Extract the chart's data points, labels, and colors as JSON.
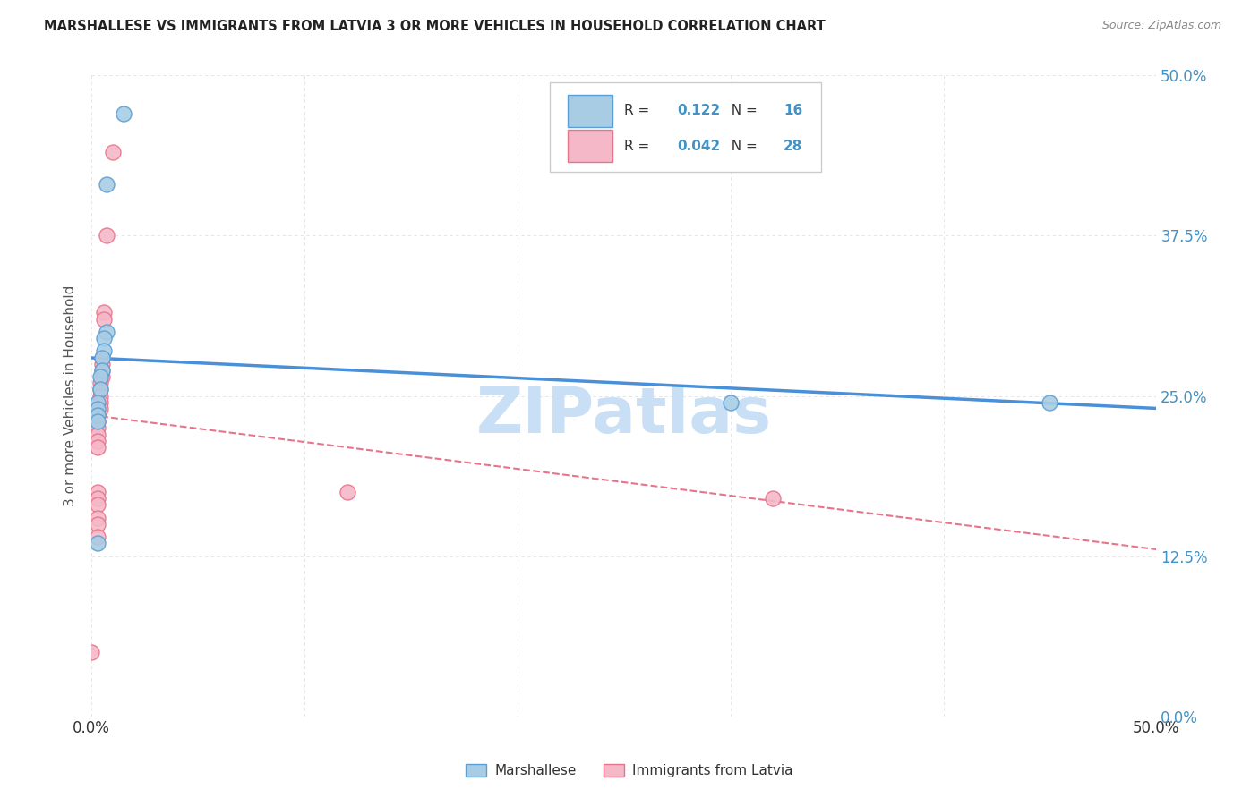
{
  "title": "MARSHALLESE VS IMMIGRANTS FROM LATVIA 3 OR MORE VEHICLES IN HOUSEHOLD CORRELATION CHART",
  "source": "Source: ZipAtlas.com",
  "ylabel": "3 or more Vehicles in Household",
  "xlim": [
    0.0,
    0.5
  ],
  "ylim": [
    0.0,
    0.5
  ],
  "x_ticks": [
    0.0,
    0.1,
    0.2,
    0.3,
    0.4,
    0.5
  ],
  "y_ticks": [
    0.0,
    0.125,
    0.25,
    0.375,
    0.5
  ],
  "y_tick_labels_right": [
    "0.0%",
    "12.5%",
    "25.0%",
    "37.5%",
    "50.0%"
  ],
  "legend_label1": "Marshallese",
  "legend_label2": "Immigrants from Latvia",
  "R1": "0.122",
  "N1": "16",
  "R2": "0.042",
  "N2": "28",
  "color_blue": "#a8cce4",
  "color_pink": "#f4b8c8",
  "edge_color_blue": "#5b9fd4",
  "edge_color_pink": "#e8748a",
  "line_color_blue": "#4a90d9",
  "line_color_pink": "#e8748a",
  "marshallese_x": [
    0.015,
    0.007,
    0.007,
    0.006,
    0.006,
    0.005,
    0.005,
    0.004,
    0.004,
    0.003,
    0.003,
    0.003,
    0.003,
    0.003,
    0.45,
    0.3
  ],
  "marshallese_y": [
    0.47,
    0.415,
    0.3,
    0.295,
    0.285,
    0.28,
    0.27,
    0.265,
    0.255,
    0.245,
    0.24,
    0.235,
    0.23,
    0.135,
    0.245,
    0.245
  ],
  "latvia_x": [
    0.01,
    0.007,
    0.006,
    0.006,
    0.005,
    0.005,
    0.005,
    0.005,
    0.004,
    0.004,
    0.004,
    0.004,
    0.004,
    0.003,
    0.003,
    0.003,
    0.003,
    0.003,
    0.003,
    0.003,
    0.003,
    0.003,
    0.003,
    0.003,
    0.003,
    0.12,
    0.32,
    0.0
  ],
  "latvia_y": [
    0.44,
    0.375,
    0.315,
    0.31,
    0.28,
    0.275,
    0.27,
    0.265,
    0.26,
    0.255,
    0.25,
    0.245,
    0.24,
    0.235,
    0.23,
    0.225,
    0.22,
    0.215,
    0.21,
    0.175,
    0.17,
    0.165,
    0.155,
    0.15,
    0.14,
    0.175,
    0.17,
    0.05
  ],
  "watermark": "ZIPatlas",
  "watermark_color": "#c8dff5",
  "watermark_fontsize": 52,
  "bg_color": "#ffffff",
  "grid_color": "#e0e0e0"
}
